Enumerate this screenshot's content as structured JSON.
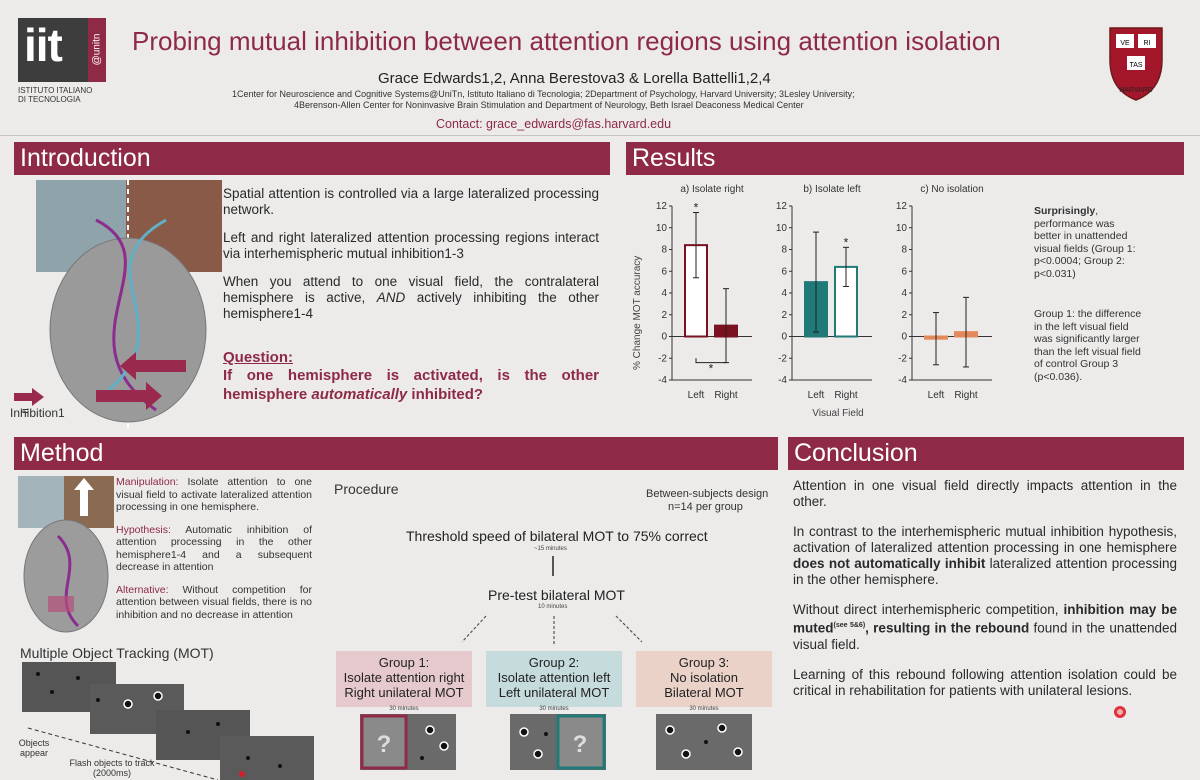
{
  "header": {
    "logo_iit": "iit",
    "logo_unitn": "@unitn",
    "logo_sub1": "ISTITUTO ITALIANO",
    "logo_sub2": "DI TECNOLOGIA",
    "title": "Probing mutual inhibition between attention regions using attention isolation",
    "authors": "Grace Edwards1,2, Anna Berestova3 & Lorella Battelli1,2,4",
    "affil1": "1Center for Neuroscience and Cognitive Systems@UniTn, Istituto Italiano di Tecnologia; 2Department of Psychology, Harvard University; 3Lesley University;",
    "affil2": "4Berenson-Allen Center for Noninvasive Brain Stimulation and Department of Neurology, Beth Israel Deaconess Medical Center",
    "contact": "Contact: grace_edwards@fas.harvard.edu",
    "seal_ve": "VE",
    "seal_ri": "RI",
    "seal_tas": "TAS",
    "seal_name": "HARVARD"
  },
  "introduction": {
    "heading": "Introduction",
    "p1": "Spatial attention is controlled via a large lateralized processing network.",
    "p2": "Left and right lateralized attention processing regions interact via interhemispheric mutual inhibition1-3",
    "p3a": "When you attend to one visual field, the contralateral hemisphere is active, ",
    "p3b": "AND",
    "p3c": " actively inhibiting the other hemisphere1-4",
    "question_label": "Question:",
    "question_a": "If one hemisphere is activated, is the other hemisphere ",
    "question_b": "automatically",
    "question_c": " inhibited?",
    "legend_eq": "=",
    "legend_label": "Inhibition1"
  },
  "results": {
    "heading": "Results",
    "ylabel": "% Change MOT accuracy",
    "xaxis_label": "Visual Field",
    "note_bold": "Surprisingly",
    "note1": ", performance was better in unattended visual fields (Group 1: p<0.0004; Group 2: p<0.031)",
    "note2": "Group 1: the difference in the left visual field was significantly larger than the left visual field of control Group 3 (p<0.036).",
    "star": "*"
  },
  "chart_data": [
    {
      "type": "bar",
      "title": "a) Isolate right",
      "categories": [
        "Left",
        "Right"
      ],
      "values": [
        8.4,
        1.0
      ],
      "error": [
        3.0,
        3.4
      ],
      "ylim": [
        -4,
        12
      ],
      "yticks": [
        "12",
        "10",
        "8",
        "6",
        "4",
        "2",
        "0",
        "-2",
        "-4"
      ],
      "color": "#7a1020",
      "fills": [
        "#ffffff",
        "#7a1020"
      ],
      "annotations": [
        "* above Left bar",
        "* between Left and Right"
      ]
    },
    {
      "type": "bar",
      "title": "b) Isolate left",
      "categories": [
        "Left",
        "Right"
      ],
      "values": [
        5.0,
        6.4
      ],
      "error": [
        4.6,
        1.8
      ],
      "ylim": [
        -4,
        12
      ],
      "yticks": [
        "12",
        "10",
        "8",
        "6",
        "4",
        "2",
        "0",
        "-2",
        "-4"
      ],
      "color": "#1f7a78",
      "fills": [
        "#1f7a78",
        "#ffffff"
      ],
      "annotations": [
        "* above Right bar"
      ]
    },
    {
      "type": "bar",
      "title": "c) No isolation",
      "categories": [
        "Left",
        "Right"
      ],
      "values": [
        -0.2,
        0.4
      ],
      "error": [
        2.4,
        3.2
      ],
      "ylim": [
        -4,
        12
      ],
      "yticks": [
        "12",
        "10",
        "8",
        "6",
        "4",
        "2",
        "0",
        "-2",
        "-4"
      ],
      "color": "#e48a5a",
      "fills": [
        "#e48a5a",
        "#e48a5a"
      ],
      "annotations": []
    }
  ],
  "method": {
    "heading": "Method",
    "manip_label": "Manipulation:",
    "manip_text": " Isolate attention to one visual field to activate lateralized attention processing in one hemisphere.",
    "hyp_label": "Hypothesis:",
    "hyp_text": " Automatic inhibition of attention processing in the other hemisphere1-4 and a subsequent decrease in attention",
    "alt_label": "Alternative:",
    "alt_text": " Without competition for attention between visual fields, there is no inhibition and no decrease in attention",
    "mot_title": "Multiple Object Tracking (MOT)",
    "objects_appear": "Objects appear",
    "flash_objects": "Flash objects to track (2000ms)",
    "procedure": "Procedure",
    "design1": "Between-subjects design",
    "design2": "n=14 per group",
    "threshold": "Threshold speed of bilateral MOT to 75% correct",
    "threshold_mins": "~15 minutes",
    "pretest": "Pre-test bilateral MOT",
    "pretest_mins": "10 minutes",
    "groups": [
      {
        "line1": "Group 1:",
        "line2": "Isolate attention right",
        "line3": "Right unilateral MOT",
        "mins": "30 minutes",
        "color": "#e6c9cd"
      },
      {
        "line1": "Group 2:",
        "line2": "Isolate attention left",
        "line3": "Left unilateral MOT",
        "mins": "30 minutes",
        "color": "#c6dbdc"
      },
      {
        "line1": "Group 3:",
        "line2": "No isolation",
        "line3": "Bilateral MOT",
        "mins": "30 minutes",
        "color": "#ead2c9"
      }
    ]
  },
  "conclusion": {
    "heading": "Conclusion",
    "p1": "Attention in one visual field directly impacts attention in the other.",
    "p2a": "In contrast to the interhemispheric mutual inhibition hypothesis, activation of lateralized attention processing in one hemisphere ",
    "p2b": "does not automatically inhibit",
    "p2c": " lateralized attention processing in the other hemisphere.",
    "p3a": "Without direct interhemispheric competition, ",
    "p3b": "inhibition may be muted",
    "p3sup": "(see 5&6)",
    "p3c": ", resulting in the rebound",
    "p3d": " found in the unattended visual field.",
    "p4": "Learning of this rebound following attention isolation could be critical in rehabilitation for patients with unilateral lesions."
  }
}
